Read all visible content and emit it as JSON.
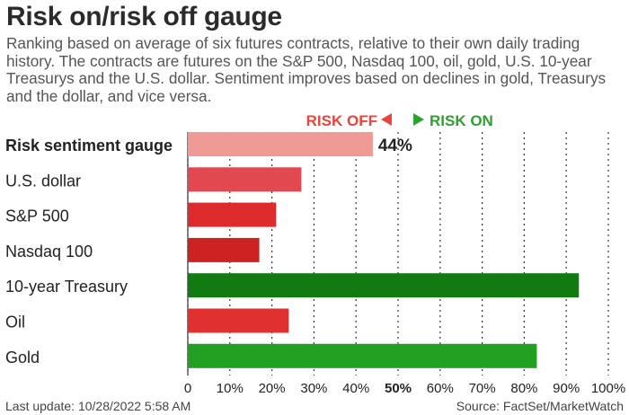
{
  "title": "Risk on/risk off gauge",
  "subtitle": "Ranking based on average of six futures contracts, relative to their own daily trading history. The contracts are futures on the S&P 500, Nasdaq 100, oil, gold, U.S. 10-year Treasurys and the U.S. dollar. Sentiment improves based on declines in gold, Treasurys and the dollar, and vice versa.",
  "legend": {
    "risk_off": "RISK OFF",
    "risk_on": "RISK ON"
  },
  "colors": {
    "risk_off": "#e8453c",
    "risk_on": "#2ea02e",
    "gauge": "#f09a96",
    "treasury": "#117a11",
    "gold": "#22a022",
    "dollar": "#e24850",
    "sp500": "#dd2a2a",
    "nasdaq": "#cc2222",
    "oil": "#e03030"
  },
  "chart_data": {
    "type": "bar",
    "orientation": "horizontal",
    "categories": [
      "Risk sentiment gauge",
      "U.S. dollar",
      "S&P 500",
      "Nasdaq 100",
      "10-year Treasury",
      "Oil",
      "Gold"
    ],
    "values": [
      44,
      27,
      21,
      17,
      93,
      24,
      83
    ],
    "value_labels": [
      "44%",
      "",
      "",
      "",
      "",
      "",
      ""
    ],
    "xlim": [
      0,
      100
    ],
    "xticks": [
      "0",
      "10%",
      "20%",
      "30%",
      "40%",
      "50%",
      "60%",
      "70%",
      "80%",
      "90%",
      "100%"
    ],
    "highlight_tick": "50%",
    "grid": "dotted vertical",
    "midline": 50
  },
  "footer": {
    "last_update": "Last update: 10/28/2022 5:58 AM",
    "source": "Source: FactSet/MarketWatch"
  }
}
